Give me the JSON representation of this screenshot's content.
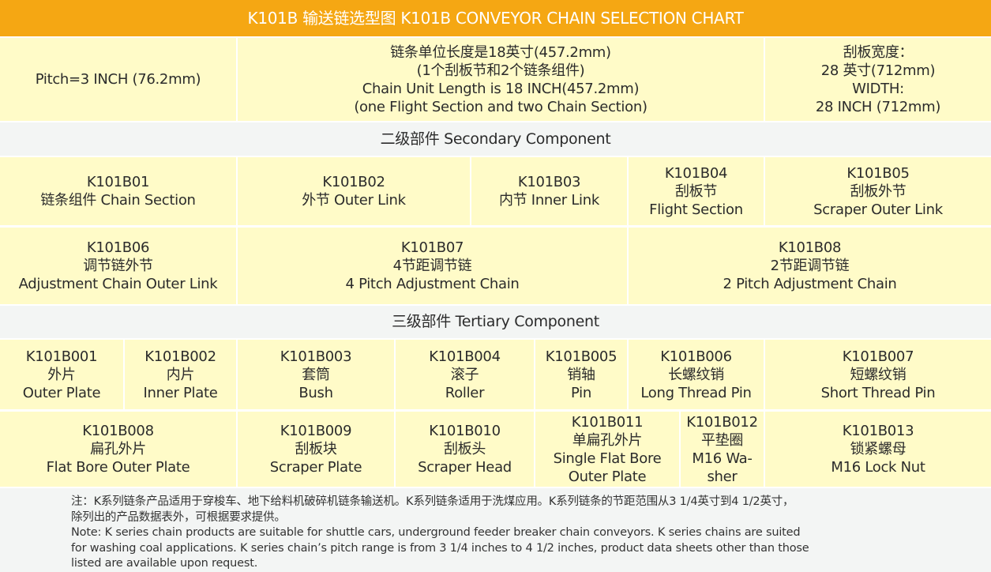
{
  "title": "K101B 输送链选型图  K101B CONVEYOR CHAIN  SELECTION CHART",
  "spec": [
    [
      "Pitch=3 INCH (76.2mm)"
    ],
    [
      "链条单位长度是18英寸(457.2mm)",
      "(1个刮板节和2个链条组件)",
      "Chain Unit Length is 18 INCH(457.2mm)",
      "(one Flight Section and two Chain Section)"
    ],
    [
      "刮板宽度：",
      "28 英寸(712mm)",
      "WIDTH:",
      "28 INCH (712mm)"
    ]
  ],
  "secondary_header": "二级部件 Secondary Component",
  "secondary_row1": [
    [
      "K101B01",
      "链条组件 Chain Section"
    ],
    [
      "K101B02",
      "外节 Outer Link"
    ],
    [
      "K101B03",
      "内节 Inner Link"
    ],
    [
      "K101B04",
      "刮板节",
      "Flight Section"
    ],
    [
      "K101B05",
      "刮板外节",
      "Scraper Outer Link"
    ]
  ],
  "secondary_row2": [
    [
      "K101B06",
      "调节链外节",
      "Adjustment Chain Outer Link"
    ],
    [
      "K101B07",
      "4节距调节链",
      "4 Pitch Adjustment Chain"
    ],
    [
      "K101B08",
      "2节距调节链",
      "2 Pitch Adjustment Chain"
    ]
  ],
  "tertiary_header": "三级部件 Tertiary Component",
  "tertiary_row1": [
    [
      "K101B001",
      "外片",
      "Outer Plate"
    ],
    [
      "K101B002",
      "内片",
      "Inner Plate"
    ],
    [
      "K101B003",
      "套筒",
      "Bush"
    ],
    [
      "K101B004",
      "滚子",
      "Roller"
    ],
    [
      "K101B005",
      "销轴",
      "Pin"
    ],
    [
      "K101B006",
      "长螺纹销",
      "Long Thread Pin"
    ],
    [
      "K101B007",
      "短螺纹销",
      "Short Thread Pin"
    ]
  ],
  "tertiary_row2": [
    [
      "K101B008",
      "扁孔外片",
      "Flat Bore Outer Plate"
    ],
    [
      "K101B009",
      "刮板块",
      "Scraper Plate"
    ],
    [
      "K101B010",
      "刮板头",
      "Scraper Head"
    ],
    [
      "K101B011",
      "单扁孔外片",
      "Single Flat Bore",
      "Outer Plate"
    ],
    [
      "K101B012",
      "平垫圈",
      "M16 Wa-",
      "sher"
    ],
    [
      "K101B013",
      "锁紧螺母",
      "M16 Lock Nut"
    ]
  ],
  "note": [
    "注：K系列链条产品适用于穿梭车、地下给料机破碎机链条输送机。K系列链条适用于洗煤应用。K系列链条的节距范围从3   1/4英寸到4   1/2英寸，",
    "除列出的产品数据表外，可根据要求提供。",
    "Note:   K series chain products are suitable for shuttle cars, underground feeder breaker chain conveyors. K series chains are suited",
    "for washing coal applications. K series chain’s pitch range is from 3 1/4 inches to 4 1/2  inches, product data sheets other than those",
    "listed are available upon request."
  ],
  "colors": {
    "title_bg": "#f5a713",
    "cell_bg": "#fffbc8",
    "header_bg": "#f3f5f4"
  }
}
